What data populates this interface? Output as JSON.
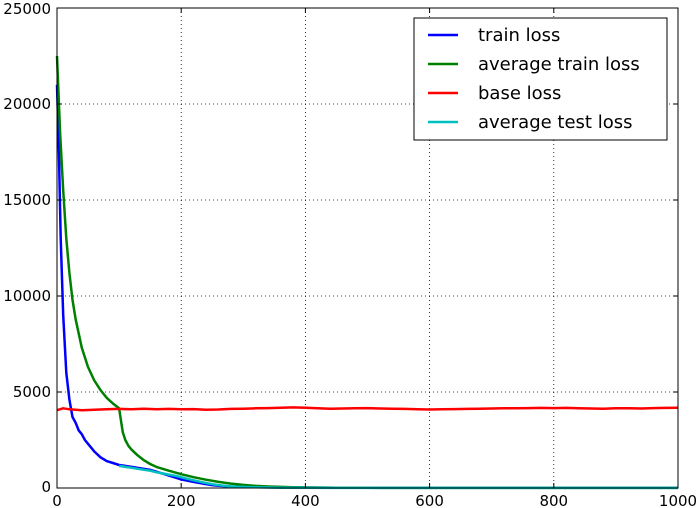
{
  "chart_data": {
    "type": "line",
    "title": "",
    "xlabel": "",
    "ylabel": "",
    "xlim": [
      0,
      1000
    ],
    "ylim": [
      0,
      25000
    ],
    "xticks": [
      0,
      200,
      400,
      600,
      800,
      1000
    ],
    "yticks": [
      0,
      5000,
      10000,
      15000,
      20000,
      25000
    ],
    "grid": true,
    "legend_position": "top-right",
    "series": [
      {
        "name": "train loss",
        "color": "#0000ff",
        "x": [
          0,
          3,
          6,
          10,
          15,
          20,
          25,
          30,
          35,
          40,
          45,
          50,
          55,
          60,
          70,
          80,
          90,
          100,
          110,
          120,
          130,
          140,
          150,
          160,
          170,
          180,
          190,
          200,
          210,
          220,
          230,
          240,
          250,
          260,
          270,
          280,
          300,
          330,
          360,
          400,
          450,
          500,
          600,
          700,
          800,
          900,
          1000
        ],
        "y": [
          21000,
          17500,
          13000,
          9000,
          6000,
          4600,
          3700,
          3400,
          3000,
          2800,
          2500,
          2300,
          2100,
          1900,
          1600,
          1400,
          1300,
          1200,
          1150,
          1100,
          1050,
          1000,
          950,
          850,
          750,
          650,
          550,
          450,
          380,
          320,
          260,
          200,
          150,
          120,
          100,
          80,
          60,
          40,
          30,
          20,
          15,
          10,
          10,
          10,
          10,
          10,
          10
        ]
      },
      {
        "name": "average train loss",
        "color": "#008000",
        "x": [
          0,
          5,
          10,
          15,
          20,
          25,
          30,
          40,
          50,
          60,
          70,
          80,
          90,
          100,
          103,
          106,
          110,
          115,
          120,
          130,
          140,
          150,
          160,
          180,
          200,
          220,
          240,
          260,
          280,
          300,
          320,
          340,
          360,
          380,
          400,
          450,
          500,
          600,
          700,
          800,
          900,
          1000
        ],
        "y": [
          22500,
          18500,
          15500,
          13000,
          11200,
          9800,
          8800,
          7300,
          6300,
          5600,
          5100,
          4700,
          4400,
          4150,
          3500,
          2900,
          2500,
          2200,
          2000,
          1700,
          1450,
          1250,
          1100,
          900,
          720,
          560,
          430,
          320,
          230,
          160,
          110,
          80,
          55,
          40,
          30,
          15,
          10,
          5,
          5,
          5,
          5,
          5
        ]
      },
      {
        "name": "base loss",
        "color": "#ff0000",
        "x": [
          0,
          10,
          20,
          40,
          60,
          80,
          100,
          120,
          140,
          160,
          180,
          200,
          220,
          240,
          260,
          280,
          300,
          320,
          340,
          360,
          380,
          400,
          420,
          440,
          460,
          480,
          500,
          520,
          540,
          560,
          580,
          600,
          620,
          640,
          660,
          680,
          700,
          720,
          740,
          760,
          780,
          800,
          820,
          840,
          860,
          880,
          900,
          920,
          940,
          960,
          980,
          1000
        ],
        "y": [
          4050,
          4150,
          4100,
          4050,
          4080,
          4100,
          4120,
          4100,
          4130,
          4100,
          4120,
          4100,
          4110,
          4080,
          4090,
          4120,
          4130,
          4150,
          4160,
          4180,
          4200,
          4180,
          4150,
          4130,
          4140,
          4150,
          4160,
          4140,
          4130,
          4120,
          4100,
          4090,
          4100,
          4110,
          4120,
          4130,
          4140,
          4150,
          4150,
          4160,
          4170,
          4160,
          4170,
          4150,
          4140,
          4130,
          4150,
          4150,
          4140,
          4160,
          4170,
          4180
        ]
      },
      {
        "name": "average test loss",
        "color": "#00bfbf",
        "x": [
          100,
          110,
          120,
          130,
          140,
          150,
          160,
          170,
          180,
          190,
          200,
          210,
          220,
          230,
          240,
          250,
          260,
          270,
          280,
          300,
          320,
          340,
          360,
          380,
          400,
          450,
          500,
          600,
          700,
          800,
          900,
          1000
        ],
        "y": [
          1150,
          1100,
          1050,
          1000,
          950,
          900,
          820,
          760,
          700,
          640,
          560,
          480,
          400,
          330,
          260,
          200,
          150,
          110,
          80,
          50,
          35,
          25,
          15,
          10,
          8,
          5,
          5,
          5,
          5,
          5,
          5,
          5
        ]
      }
    ]
  }
}
